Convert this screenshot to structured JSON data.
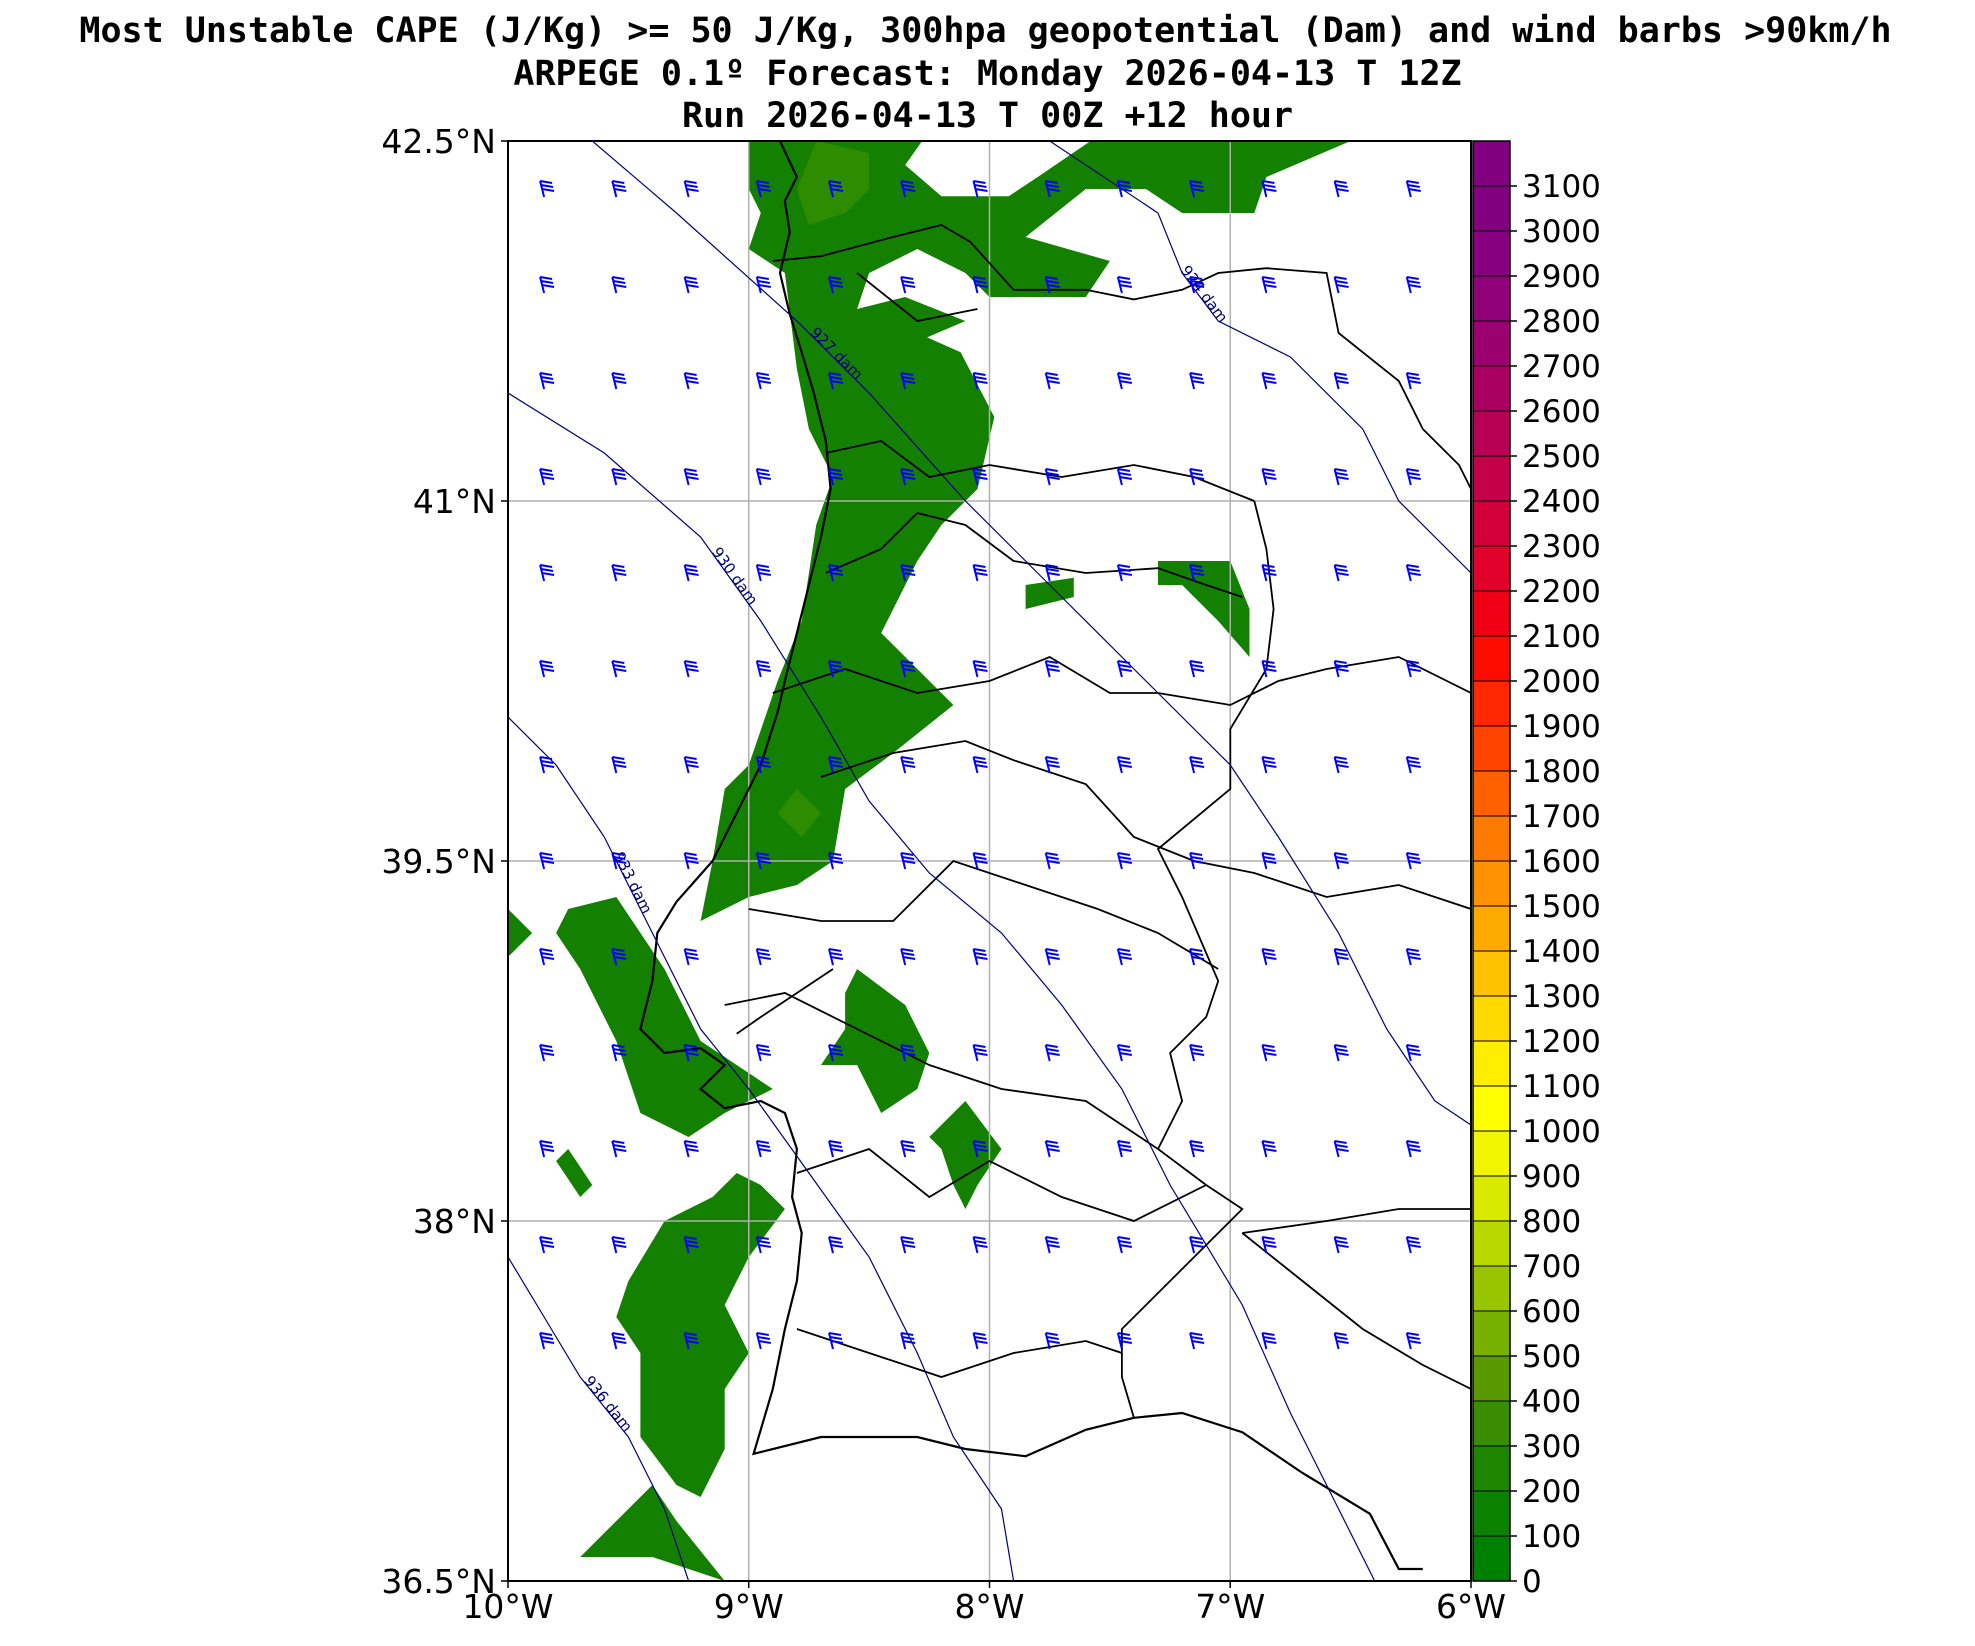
{
  "title": {
    "line1": "Most Unstable CAPE (J/Kg) >= 50 J/Kg, 300hpa geopotential (Dam) and wind barbs >90km/h",
    "line2": "ARPEGE 0.1º Forecast: Monday 2026-04-13 T 12Z",
    "line3": "Run 2026-04-13 T 00Z +12 hour"
  },
  "map": {
    "lon_range": [
      -10,
      -6
    ],
    "lat_range": [
      36.5,
      42.5
    ],
    "grid": true,
    "x_ticks": [
      {
        "value": -10,
        "label": "10°W"
      },
      {
        "value": -9,
        "label": "9°W"
      },
      {
        "value": -8,
        "label": "8°W"
      },
      {
        "value": -7,
        "label": "7°W"
      },
      {
        "value": -6,
        "label": "6°W"
      }
    ],
    "y_ticks": [
      {
        "value": 36.5,
        "label": "36.5°N"
      },
      {
        "value": 38,
        "label": "38°N"
      },
      {
        "value": 39.5,
        "label": "39.5°N"
      },
      {
        "value": 41,
        "label": "41°N"
      },
      {
        "value": 42.5,
        "label": "42.5°N"
      }
    ],
    "cape_fill_color": "#138000",
    "cape_fill_light_color": "#2e8c00",
    "coast_color": "#000000",
    "contour_color": "#00007a",
    "barb_color": "#0000ff",
    "geopotential_contours": [
      {
        "label": "927 dam",
        "points": [
          [
            -9.65,
            42.5
          ],
          [
            -9.3,
            42.2
          ],
          [
            -8.8,
            41.75
          ],
          [
            -8.5,
            41.45
          ],
          [
            -8.1,
            41.0
          ],
          [
            -7.7,
            40.6
          ],
          [
            -7.3,
            40.2
          ],
          [
            -7.0,
            39.9
          ],
          [
            -6.8,
            39.6
          ],
          [
            -6.55,
            39.2
          ],
          [
            -6.35,
            38.8
          ],
          [
            -6.15,
            38.5
          ],
          [
            -6.0,
            38.4
          ]
        ]
      },
      {
        "label": "924 dam",
        "points": [
          [
            -7.75,
            42.5
          ],
          [
            -7.3,
            42.2
          ],
          [
            -7.2,
            41.95
          ],
          [
            -7.05,
            41.75
          ],
          [
            -6.75,
            41.6
          ],
          [
            -6.45,
            41.3
          ],
          [
            -6.3,
            41.0
          ],
          [
            -6.0,
            40.7
          ]
        ]
      },
      {
        "label": "930 dam",
        "points": [
          [
            -10.0,
            41.45
          ],
          [
            -9.6,
            41.2
          ],
          [
            -9.2,
            40.85
          ],
          [
            -8.95,
            40.5
          ],
          [
            -8.7,
            40.1
          ],
          [
            -8.5,
            39.75
          ],
          [
            -8.25,
            39.45
          ],
          [
            -7.95,
            39.2
          ],
          [
            -7.7,
            38.9
          ],
          [
            -7.45,
            38.55
          ],
          [
            -7.25,
            38.15
          ],
          [
            -6.95,
            37.65
          ],
          [
            -6.75,
            37.2
          ],
          [
            -6.55,
            36.8
          ],
          [
            -6.4,
            36.5
          ]
        ]
      },
      {
        "label": "933 dam",
        "points": [
          [
            -10.0,
            40.1
          ],
          [
            -9.8,
            39.9
          ],
          [
            -9.6,
            39.6
          ],
          [
            -9.4,
            39.2
          ],
          [
            -9.2,
            38.8
          ],
          [
            -9.0,
            38.55
          ],
          [
            -8.75,
            38.2
          ],
          [
            -8.5,
            37.85
          ],
          [
            -8.3,
            37.45
          ],
          [
            -8.15,
            37.1
          ],
          [
            -7.95,
            36.8
          ],
          [
            -7.9,
            36.5
          ]
        ]
      },
      {
        "label": "936 dam",
        "points": [
          [
            -10.0,
            37.85
          ],
          [
            -9.85,
            37.6
          ],
          [
            -9.7,
            37.35
          ],
          [
            -9.5,
            37.1
          ],
          [
            -9.35,
            36.8
          ],
          [
            -9.25,
            36.5
          ]
        ]
      }
    ]
  },
  "colorbar": {
    "ticks": [
      "0",
      "100",
      "200",
      "300",
      "400",
      "500",
      "600",
      "700",
      "800",
      "900",
      "1000",
      "1100",
      "1200",
      "1300",
      "1400",
      "1500",
      "1600",
      "1700",
      "1800",
      "1900",
      "2000",
      "2100",
      "2200",
      "2300",
      "2400",
      "2500",
      "2600",
      "2700",
      "2800",
      "2900",
      "3000",
      "3100"
    ],
    "range": [
      0,
      3200
    ],
    "colors": [
      "#008000",
      "#0c8200",
      "#1e8500",
      "#3a8d00",
      "#589800",
      "#78b000",
      "#98c400",
      "#b8d800",
      "#d8ea00",
      "#f2f500",
      "#ffff00",
      "#ffee00",
      "#ffd900",
      "#ffc200",
      "#ffaa00",
      "#ff9200",
      "#ff7a00",
      "#ff6000",
      "#ff4400",
      "#ff2800",
      "#ff0c00",
      "#f00014",
      "#e0002a",
      "#d2003a",
      "#c40048",
      "#b80054",
      "#aa0062",
      "#9c0070",
      "#900078",
      "#86007e",
      "#800080",
      "#800080"
    ]
  }
}
